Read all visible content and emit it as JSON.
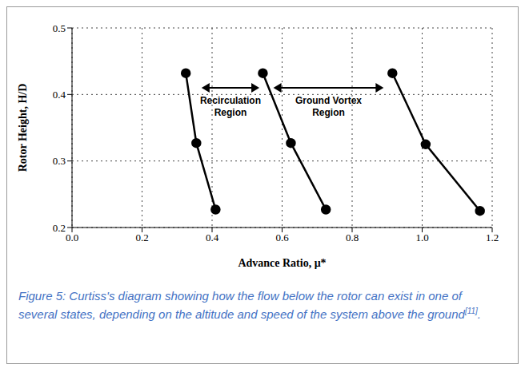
{
  "chart_data": {
    "type": "line",
    "xlabel": "Advance Ratio, μ*",
    "ylabel": "Rotor Height, H/D",
    "xlim": [
      0,
      1.2
    ],
    "ylim": [
      0.2,
      0.5
    ],
    "xticks": [
      {
        "value": 0,
        "label": "0.0"
      },
      0.2,
      0.4,
      0.6,
      0.8,
      {
        "value": 1,
        "label": "1.0"
      },
      1.2
    ],
    "yticks": [
      0.2,
      0.3,
      0.4,
      0.5
    ],
    "grid": true,
    "color": "#000000",
    "marker": "circle",
    "series": [
      {
        "x": [
          0.325,
          0.355,
          0.41
        ],
        "values": [
          0.432,
          0.327,
          0.227
        ]
      },
      {
        "x": [
          0.545,
          0.625,
          0.725
        ],
        "values": [
          0.432,
          0.327,
          0.227
        ]
      },
      {
        "x": [
          0.915,
          1.01,
          1.165
        ],
        "values": [
          0.432,
          0.325,
          0.225
        ]
      }
    ],
    "annotations": [
      {
        "text": "Recirculation Region",
        "x": [
          0.37,
          0.535
        ],
        "y": 0.41
      },
      {
        "text": "Ground Vortex Region",
        "x": [
          0.575,
          0.89
        ],
        "y": 0.41
      }
    ],
    "caption": "Figure 5: Curtiss's diagram showing how the flow below the rotor can exist in one of several states, depending on the altitude and speed of the system above the ground",
    "caption_ref": "[11]"
  }
}
